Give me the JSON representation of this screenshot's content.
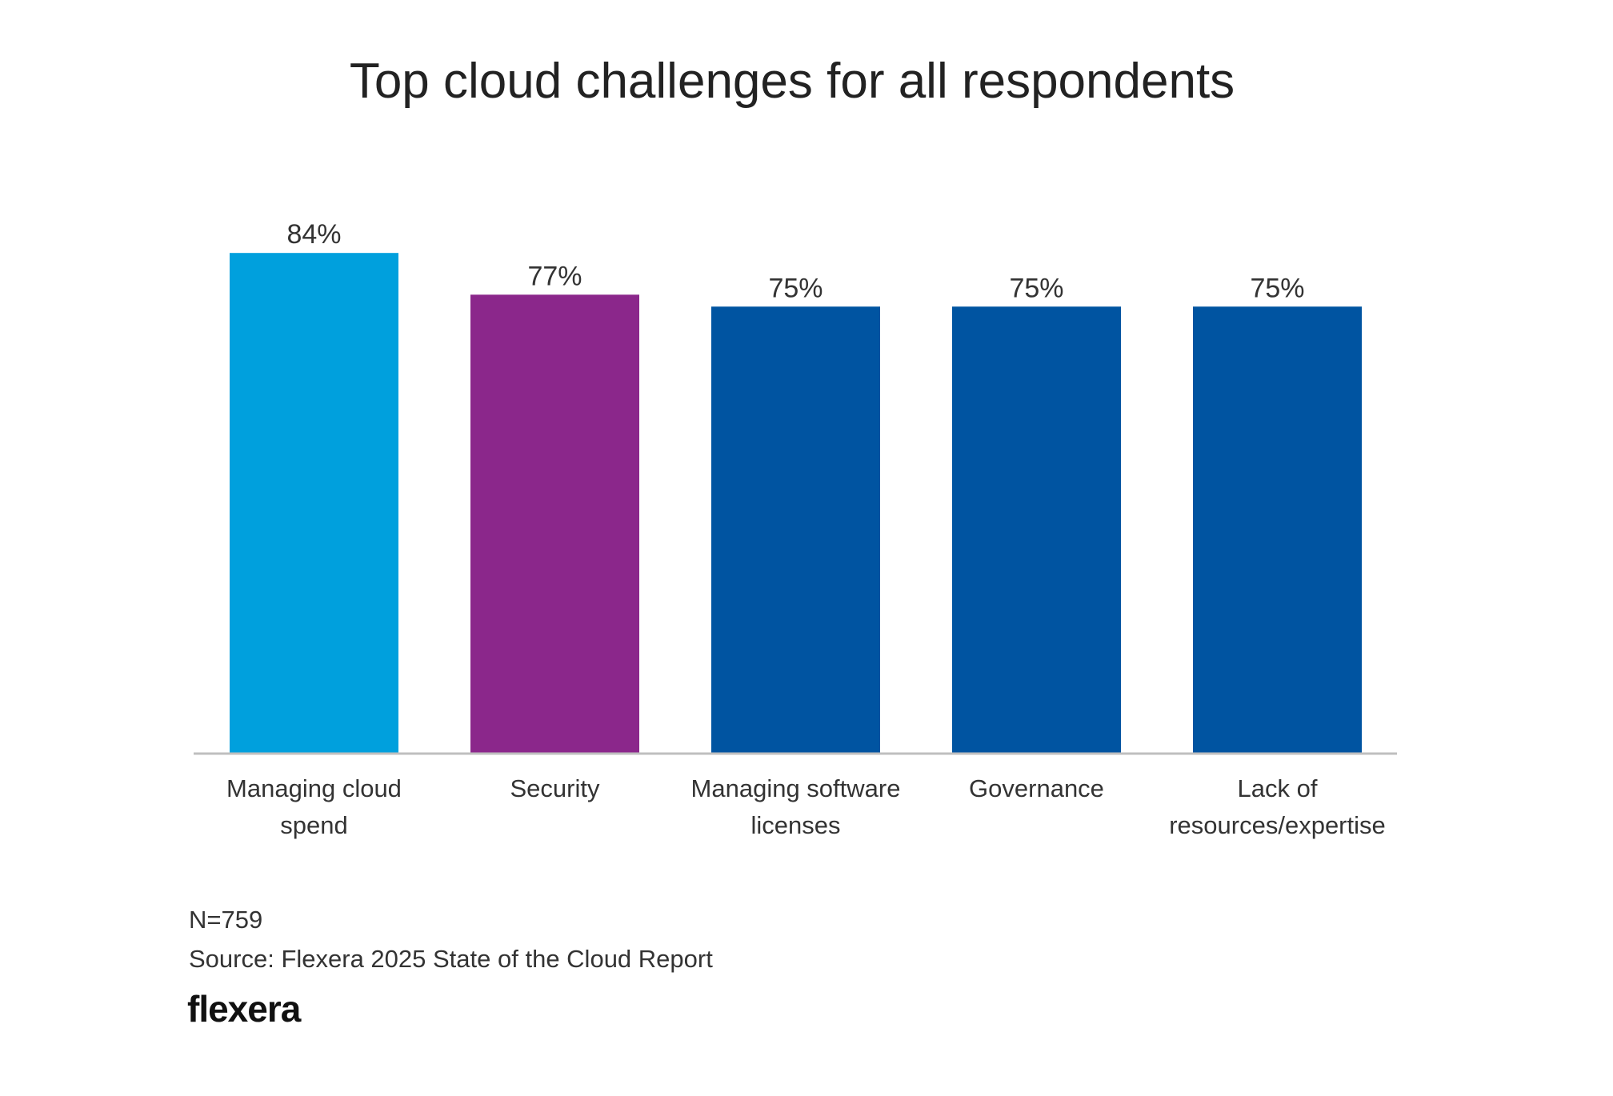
{
  "chart_data": {
    "type": "bar",
    "title": "Top cloud challenges for all respondents",
    "categories": [
      [
        "Managing cloud",
        "spend"
      ],
      [
        "Security"
      ],
      [
        "Managing software",
        "licenses"
      ],
      [
        "Governance"
      ],
      [
        "Lack of",
        "resources/expertise"
      ]
    ],
    "values": [
      84,
      77,
      75,
      75,
      75
    ],
    "data_labels": [
      "84%",
      "77%",
      "75%",
      "75%",
      "75%"
    ],
    "colors": [
      "#00a0dd",
      "#8b278b",
      "#0054a1",
      "#0054a1",
      "#0054a1"
    ],
    "axis_color": "#bfbfbf",
    "ylim": [
      0,
      100
    ],
    "grid": false,
    "legend": "none",
    "unit": "%"
  },
  "footer": {
    "sample": "N=759",
    "source": "Source: Flexera 2025 State of the Cloud Report",
    "logo": "flexera"
  }
}
